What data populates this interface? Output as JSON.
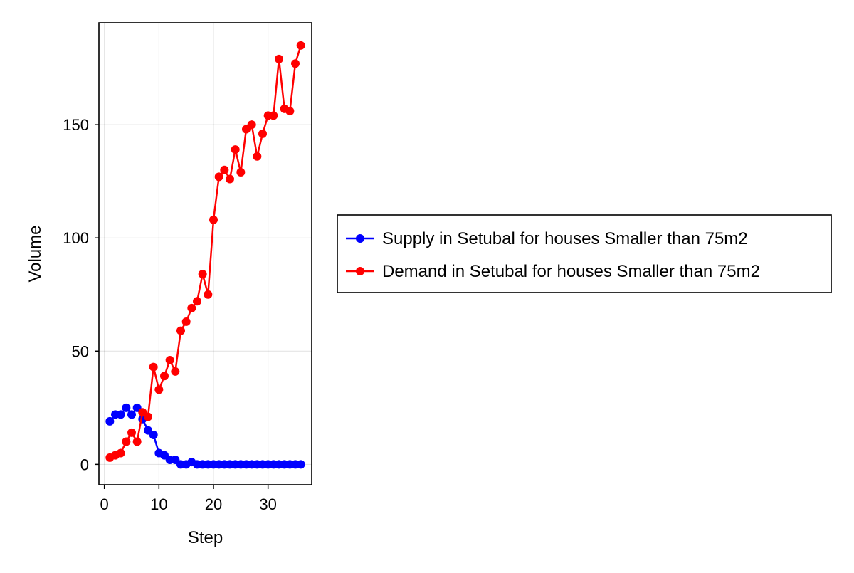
{
  "chart_data": {
    "type": "line",
    "title": "",
    "xlabel": "Step",
    "ylabel": "Volume",
    "xlim": [
      -1,
      38
    ],
    "ylim": [
      -9,
      195
    ],
    "x_ticks": [
      0,
      10,
      20,
      30
    ],
    "y_ticks": [
      0,
      50,
      100,
      150
    ],
    "grid": true,
    "legend_position": "right",
    "x": [
      1,
      2,
      3,
      4,
      5,
      6,
      7,
      8,
      9,
      10,
      11,
      12,
      13,
      14,
      15,
      16,
      17,
      18,
      19,
      20,
      21,
      22,
      23,
      24,
      25,
      26,
      27,
      28,
      29,
      30,
      31,
      32,
      33,
      34,
      35,
      36
    ],
    "series": [
      {
        "name": "Supply in Setubal for houses Smaller than 75m2",
        "color": "#0000ff",
        "marker": "circle",
        "values": [
          19,
          22,
          22,
          25,
          22,
          25,
          20,
          15,
          13,
          5,
          4,
          2,
          2,
          0,
          0,
          1,
          0,
          0,
          0,
          0,
          0,
          0,
          0,
          0,
          0,
          0,
          0,
          0,
          0,
          0,
          0,
          0,
          0,
          0,
          0,
          0
        ]
      },
      {
        "name": "Demand in Setubal for houses Smaller than 75m2",
        "color": "#ff0000",
        "marker": "circle",
        "values": [
          3,
          4,
          5,
          10,
          14,
          10,
          23,
          21,
          43,
          33,
          39,
          46,
          41,
          59,
          63,
          69,
          72,
          84,
          75,
          108,
          127,
          130,
          126,
          139,
          129,
          148,
          150,
          136,
          146,
          154,
          154,
          179,
          157,
          156,
          177,
          185
        ]
      }
    ]
  }
}
